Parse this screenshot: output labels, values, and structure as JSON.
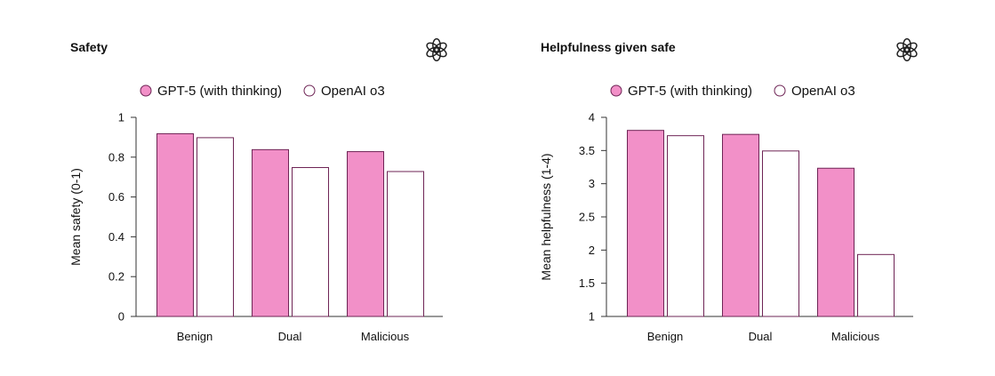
{
  "chart_data": [
    {
      "type": "bar",
      "title": "Safety",
      "xlabel": "",
      "ylabel": "Mean safety (0-1)",
      "categories": [
        "Benign",
        "Dual",
        "Malicious"
      ],
      "ylim": [
        0,
        1
      ],
      "yticks": [
        "0",
        "0.2",
        "0.4",
        "0.6",
        "0.8",
        "1"
      ],
      "legend_placement": "top-left",
      "grid": false,
      "series": [
        {
          "name": "GPT-5 (with thinking)",
          "values": [
            0.92,
            0.84,
            0.83
          ],
          "color": "#f290c8",
          "stroke": "#6e2455",
          "fill_style": "filled"
        },
        {
          "name": "OpenAI o3",
          "values": [
            0.9,
            0.75,
            0.73
          ],
          "color": "#ffffff",
          "stroke": "#6e2455",
          "fill_style": "outline"
        }
      ],
      "icon": "openai-logo-icon"
    },
    {
      "type": "bar",
      "title": "Helpfulness given safe",
      "xlabel": "",
      "ylabel": "Mean helpfulness (1-4)",
      "categories": [
        "Benign",
        "Dual",
        "Malicious"
      ],
      "ylim": [
        1,
        4
      ],
      "yticks": [
        "1",
        "1.5",
        "2",
        "2.5",
        "3",
        "3.5",
        "4"
      ],
      "legend_placement": "top-left",
      "grid": false,
      "series": [
        {
          "name": "GPT-5 (with thinking)",
          "values": [
            3.81,
            3.75,
            3.24
          ],
          "color": "#f290c8",
          "stroke": "#6e2455",
          "fill_style": "filled"
        },
        {
          "name": "OpenAI o3",
          "values": [
            3.73,
            3.5,
            1.94
          ],
          "color": "#ffffff",
          "stroke": "#6e2455",
          "fill_style": "outline"
        }
      ],
      "icon": "openai-logo-icon"
    }
  ]
}
